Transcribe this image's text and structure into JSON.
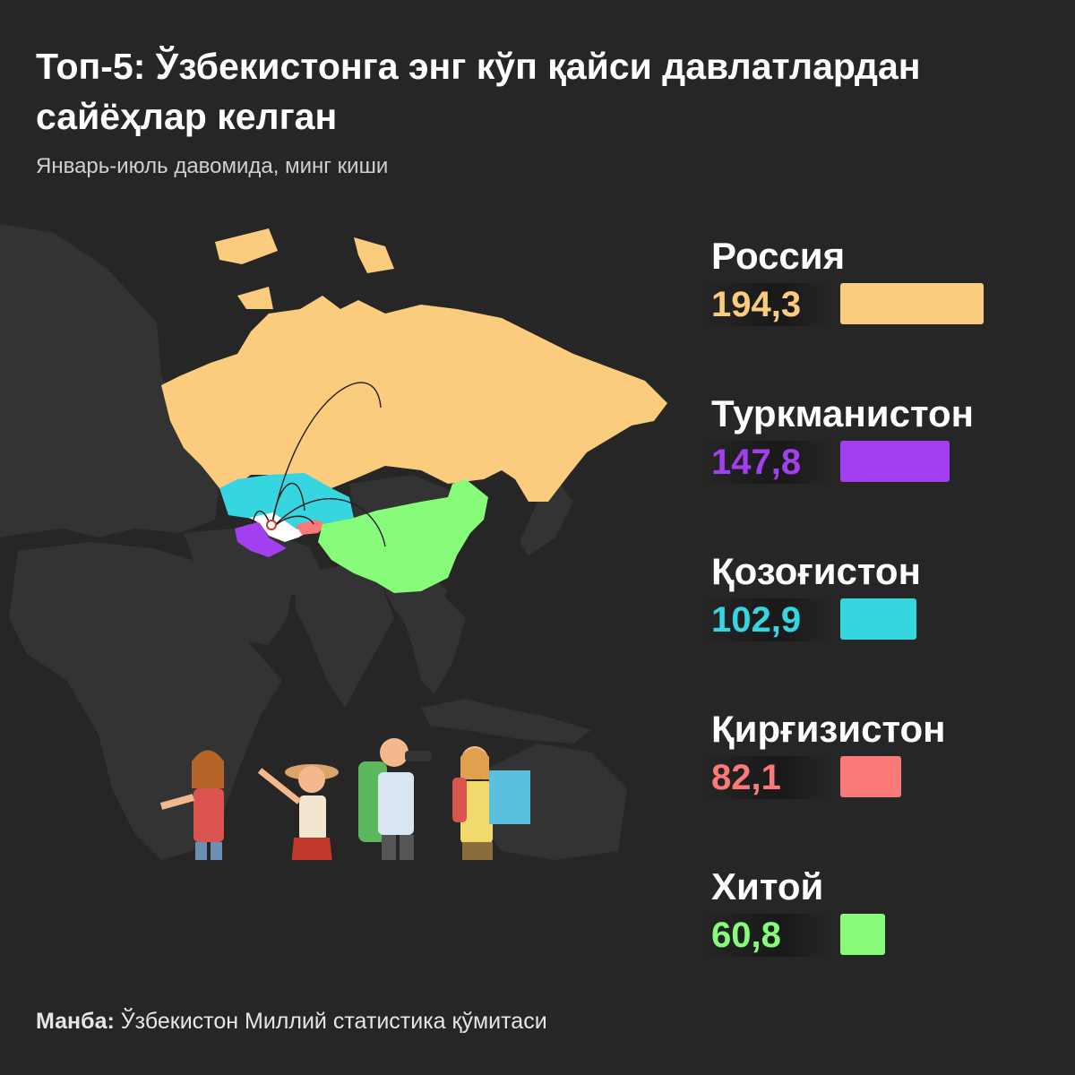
{
  "header": {
    "title": "Топ-5: Ўзбекистонга энг кўп қайси давлатлардан сайёҳлар келган",
    "subtitle": "Январь-июль давомида, минг киши"
  },
  "chart_data": {
    "type": "bar",
    "orientation": "horizontal",
    "title": "Топ-5: Ўзбекистонга энг кўп қайси давлатлардан сайёҳлар келган",
    "subtitle": "Январь-июль давомида, минг киши",
    "categories": [
      "Россия",
      "Туркманистон",
      "Қозоғистон",
      "Қирғизистон",
      "Хитой"
    ],
    "values": [
      194.3,
      147.8,
      102.9,
      82.1,
      60.8
    ],
    "value_labels": [
      "194,3",
      "147,8",
      "102,9",
      "82,1",
      "60,8"
    ],
    "colors": [
      "#fbcb7e",
      "#a23fee",
      "#35d6e0",
      "#fa7a7a",
      "#87fc7a"
    ],
    "grid": false,
    "legend": "none"
  },
  "map": {
    "colors": {
      "russia": "#fbcb7e",
      "kazakhstan": "#35d6e0",
      "turkmenistan": "#a23fee",
      "kyrgyzstan": "#fa7a7a",
      "china": "#87fc7a",
      "uzbekistan": "#ffffff",
      "land": "#333333"
    }
  },
  "footer": {
    "source_label": "Манба:",
    "source_text": "Ўзбекистон Миллий статистика қўмитаси"
  }
}
